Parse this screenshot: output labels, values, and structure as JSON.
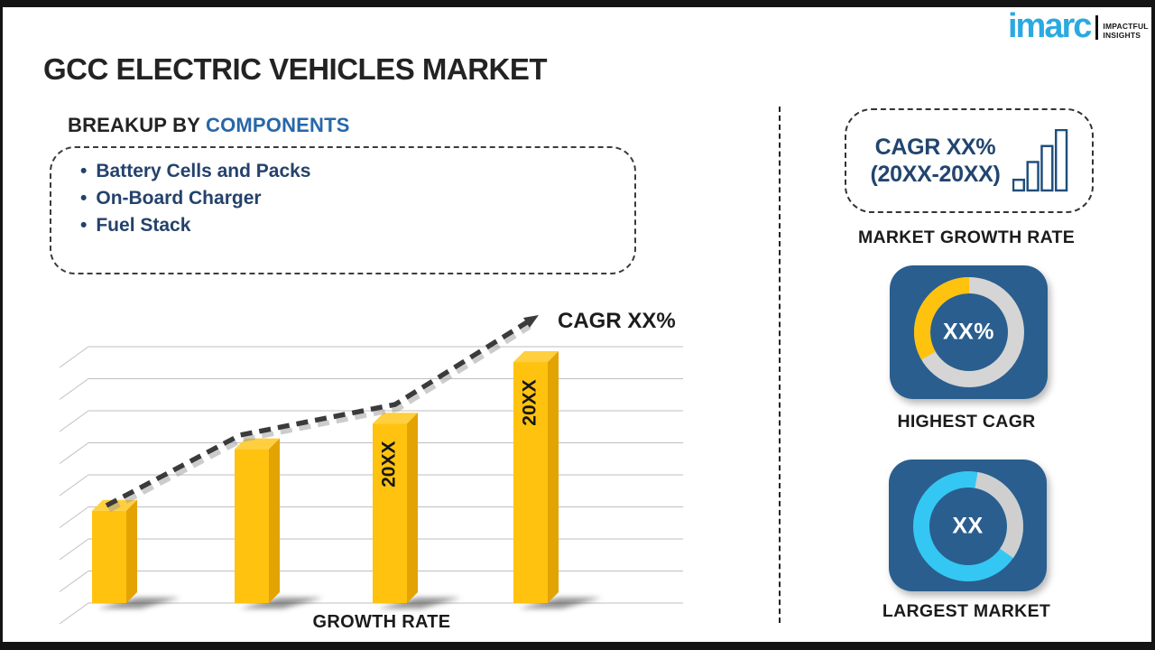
{
  "page": {
    "title": "GCC ELECTRIC VEHICLES MARKET"
  },
  "logo": {
    "brand": "imarc",
    "tagline_line1": "IMPACTFUL",
    "tagline_line2": "INSIGHTS",
    "brand_color": "#2BA9E1"
  },
  "breakup": {
    "heading_prefix": "BREAKUP BY",
    "heading_highlight": "COMPONENTS",
    "items": [
      "Battery Cells and Packs",
      "On-Board Charger",
      "Fuel Stack"
    ]
  },
  "chart_data": {
    "type": "bar",
    "categories": [
      "",
      "",
      "20XX",
      "20XX"
    ],
    "values": [
      36,
      60,
      70,
      94
    ],
    "values_note": "relative bar heights in % of plot height; source shows placeholder labels",
    "ylim": [
      0,
      100
    ],
    "grid": true,
    "legend": false,
    "xlabel": "GROWTH RATE",
    "ylabel": "",
    "trend_label": "CAGR XX%",
    "trend_style": "dashed-arrow",
    "colors": {
      "bar_front": "#FFC30F",
      "bar_top": "#FFCF3F",
      "bar_side": "#E2A303",
      "grid": "#BFBFBF",
      "trend": "#3B3B3B"
    }
  },
  "right_panel": {
    "cagr_card": {
      "line1": "CAGR XX%",
      "line2": "(20XX-20XX)"
    },
    "market_growth_caption": "MARKET GROWTH RATE",
    "highest_cagr": {
      "value": "XX%",
      "caption": "HIGHEST CAGR",
      "bg": "#2A5E8E",
      "ring_color": "#D5D5D5",
      "segment_color": "#FFC20E",
      "segment_start_deg": 240,
      "segment_end_deg": 360
    },
    "largest_market": {
      "value": "XX",
      "caption": "LARGEST MARKET",
      "bg": "#2A5E8E",
      "ring_color": "#35C7F3",
      "segment_color": "#CFCFCF",
      "segment_start_deg": 10,
      "segment_end_deg": 125
    }
  }
}
